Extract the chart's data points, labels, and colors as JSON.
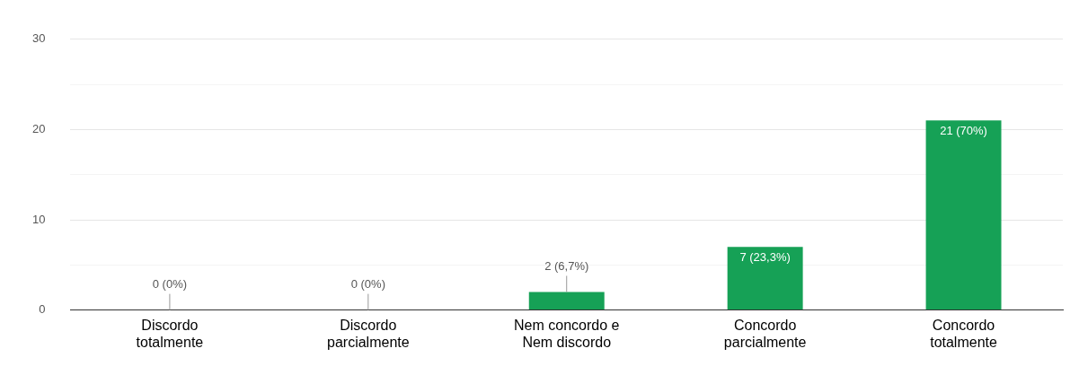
{
  "chart_data": {
    "type": "bar",
    "categories": [
      "Discordo totalmente",
      "Discordo parcialmente",
      "Nem concordo e Nem discordo",
      "Concordo parcialmente",
      "Concordo totalmente"
    ],
    "values": [
      0,
      0,
      2,
      7,
      21
    ],
    "value_labels": [
      "0 (0%)",
      "0 (0%)",
      "2 (6,7%)",
      "7 (23,3%)",
      "21 (70%)"
    ],
    "color": "#16a156",
    "ylim": [
      0,
      30
    ],
    "yticks": [
      0,
      {
        "value": 5,
        "label": null
      },
      10,
      {
        "value": 15,
        "label": null
      },
      20,
      {
        "value": 25,
        "label": null
      },
      30
    ],
    "grid": "y",
    "legend": false
  }
}
